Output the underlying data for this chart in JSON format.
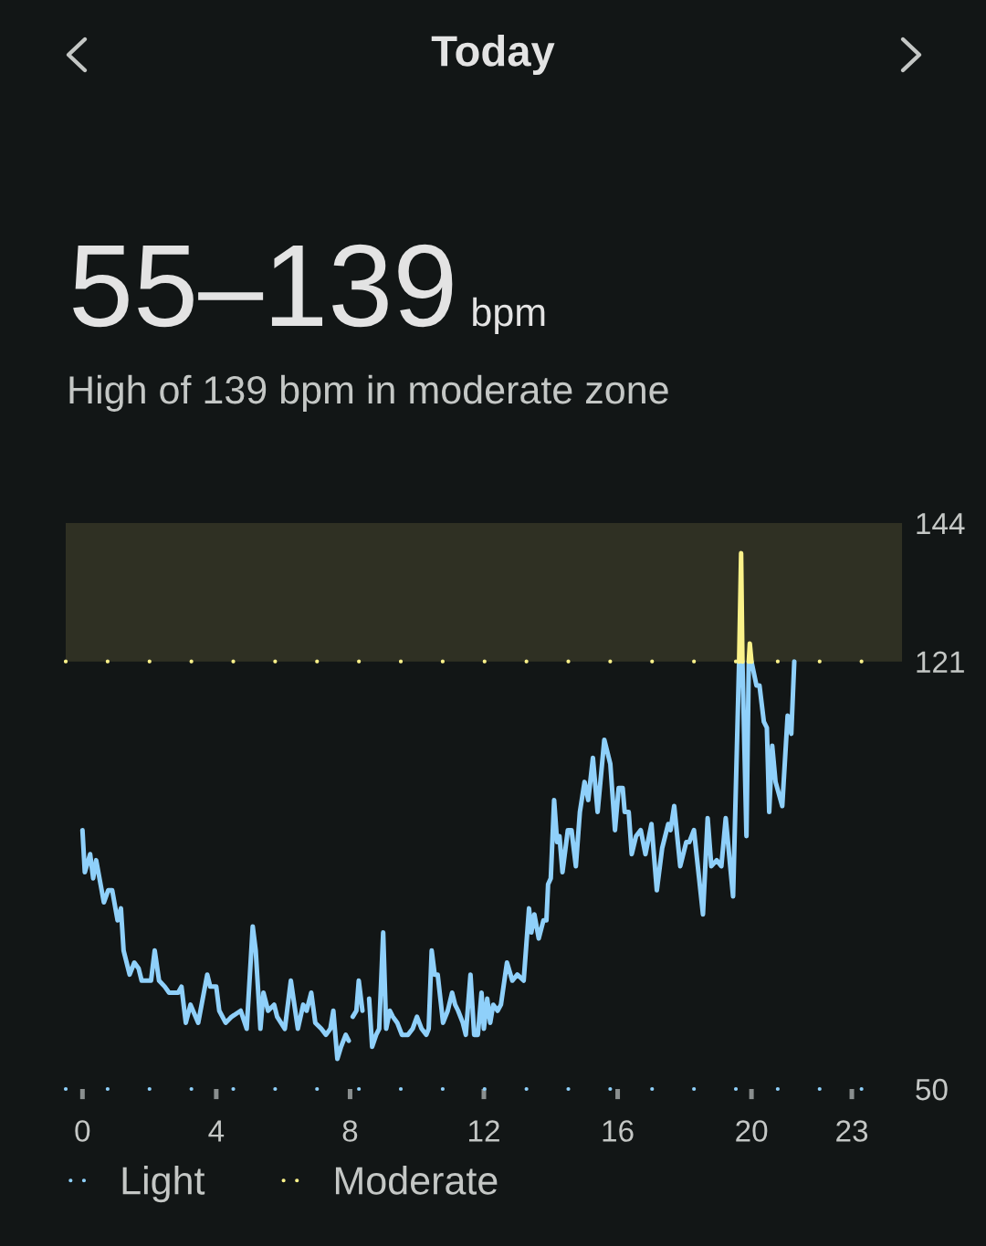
{
  "chart_data": {
    "type": "line",
    "title": "Today",
    "subtitle": "High of 139 bpm in moderate zone",
    "annotations": [
      "55–139",
      "bpm"
    ],
    "xlim": [
      -0.5,
      24.5
    ],
    "xticks": [
      0,
      4,
      8,
      12,
      16,
      20,
      23
    ],
    "ylim": [
      50,
      144
    ],
    "yticks": [
      50,
      121,
      144
    ],
    "series": [
      {
        "color": "#8fd0fa",
        "x": [
          0.0,
          0.07,
          0.23,
          0.32,
          0.41,
          0.64,
          0.77,
          0.89,
          1.05,
          1.15,
          1.23,
          1.41,
          1.55,
          1.68,
          1.77,
          2.05,
          2.16,
          2.29,
          2.46,
          2.59,
          2.86,
          2.96,
          3.09,
          3.23,
          3.46,
          3.73,
          3.82,
          4.0,
          4.09,
          4.28,
          4.46,
          4.73,
          4.91,
          5.09,
          5.18,
          5.32,
          5.41,
          5.55,
          5.73,
          5.82,
          6.05,
          6.23,
          6.44,
          6.6,
          6.7,
          6.84,
          6.96,
          7.14,
          7.28,
          7.41,
          7.5,
          7.62,
          7.73,
          7.87,
          7.96,
          8.02,
          8.08,
          8.19,
          8.26,
          8.37,
          8.47,
          8.57,
          8.66,
          8.78,
          8.87,
          8.99,
          9.08,
          9.19,
          9.28,
          9.41,
          9.55,
          9.73,
          9.87,
          10.0,
          10.14,
          10.28,
          10.35,
          10.44,
          10.53,
          10.62,
          10.78,
          10.92,
          11.05,
          11.14,
          11.23,
          11.37,
          11.46,
          11.6,
          11.71,
          11.82,
          11.93,
          12.0,
          12.1,
          12.19,
          12.28,
          12.41,
          12.51,
          12.69,
          12.85,
          13.0,
          13.19,
          13.35,
          13.42,
          13.51,
          13.64,
          13.78,
          13.87,
          13.92,
          14.0,
          14.1,
          14.19,
          14.26,
          14.35,
          14.51,
          14.62,
          14.75,
          14.87,
          15.01,
          15.12,
          15.26,
          15.4,
          15.6,
          15.78,
          15.92,
          16.03,
          16.15,
          16.21,
          16.33,
          16.42,
          16.55,
          16.69,
          16.83,
          17.01,
          17.17,
          17.33,
          17.51,
          17.58,
          17.69,
          17.87,
          18.05,
          18.14,
          18.28,
          18.55,
          18.69,
          18.8,
          18.96,
          19.1,
          19.23,
          19.45,
          19.63,
          19.68,
          19.73,
          19.85,
          19.92,
          19.96,
          20.0,
          20.15,
          20.24,
          20.37,
          20.46,
          20.53,
          20.62,
          20.72,
          20.92,
          21.08,
          21.19,
          21.28
        ],
        "values": [
          93,
          86,
          89,
          85,
          88,
          81,
          83,
          83,
          78,
          80,
          73,
          69,
          71,
          70,
          68,
          68,
          73,
          68,
          67,
          66,
          66,
          67,
          61,
          64,
          61,
          69,
          67,
          67,
          63,
          61,
          62,
          63,
          60,
          77,
          73,
          60,
          66,
          63,
          64,
          62,
          60,
          68,
          60,
          64,
          63,
          66,
          61,
          60,
          59,
          60,
          63,
          55,
          57,
          59,
          58,
          null,
          62,
          63,
          68,
          63,
          null,
          65,
          57,
          59,
          60,
          76,
          60,
          63,
          62,
          61,
          59,
          59,
          60,
          62,
          60,
          59,
          60,
          73,
          69,
          69,
          61,
          63,
          66,
          64,
          63,
          61,
          59,
          69,
          59,
          59,
          66,
          60,
          65,
          61,
          64,
          63,
          64,
          71,
          68,
          69,
          68,
          80,
          76,
          79,
          75,
          78,
          78,
          84,
          85,
          98,
          91,
          92,
          86,
          93,
          93,
          87,
          96,
          101,
          98,
          105,
          96,
          108,
          104,
          93,
          100,
          100,
          96,
          96,
          89,
          92,
          93,
          89,
          94,
          83,
          90,
          94,
          93,
          97,
          87,
          91,
          91,
          93,
          79,
          95,
          87,
          88,
          87,
          95,
          82,
          121,
          null,
          121,
          92,
          121,
          null,
          121,
          117,
          117,
          111,
          110,
          96,
          107,
          101,
          97,
          112,
          109,
          121
        ]
      },
      {
        "color": "#fbf28a",
        "x": [
          19.63,
          19.69,
          19.73,
          19.8,
          19.92,
          19.95,
          20.0
        ],
        "values": [
          121,
          139,
          121,
          null,
          121,
          124,
          121
        ]
      }
    ],
    "ref_lines": [
      {
        "axis": "y",
        "value": 50,
        "label": "Light",
        "color": "#8fd0fa",
        "line_style": "dotted"
      },
      {
        "axis": "y",
        "value": 121,
        "label": "Moderate",
        "color": "#fbf28a",
        "line_style": "dotted"
      }
    ],
    "bands": [
      {
        "axis": "y",
        "from": 121,
        "to": 144,
        "color": "#2f3023"
      }
    ],
    "legend": "bottom"
  }
}
